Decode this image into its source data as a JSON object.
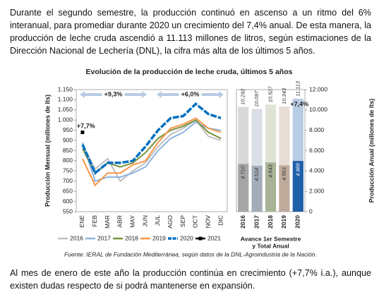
{
  "paragraphs": [
    "Durante el segundo semestre, la producción continuó en ascenso a un ritmo del 6% interanual, para promediar durante 2020 un crecimiento del 7,4% anual. De esta manera, la producción de leche cruda ascendió a 11.113 millones de litros, según estimaciones de la Dirección Nacional de Lechería (DNL), la cifra más alta de los últimos 5 años.",
    "Al mes de enero de este año la producción continúa en crecimiento (+7,7% i.a.), aunque existen dudas respecto de si podrá mantenerse en expansión."
  ],
  "figure_title": "Evolución de la producción de leche cruda, últimos 5 años",
  "source": "Fuente: IERAL de Fundación Mediterránea, según datos de la DNL-Agroindustria de la Nación.",
  "chart_data": [
    {
      "type": "line",
      "ylabel": "Producción Mensual (millones de lts)",
      "categories": [
        "ENE",
        "FEB",
        "MAR",
        "ABR",
        "MAY",
        "JUN",
        "JUL",
        "AGO",
        "SEP",
        "OCT",
        "NOV",
        "DIC"
      ],
      "series": [
        {
          "name": "2016",
          "color": "#bfbfbf",
          "values": [
            880,
            760,
            810,
            700,
            750,
            790,
            870,
            930,
            960,
            1000,
            920,
            900
          ]
        },
        {
          "name": "2017",
          "color": "#8db4e2",
          "values": [
            890,
            700,
            720,
            720,
            740,
            770,
            850,
            910,
            940,
            990,
            960,
            950
          ]
        },
        {
          "name": "2018",
          "color": "#77933c",
          "values": [
            860,
            740,
            790,
            770,
            790,
            840,
            910,
            950,
            970,
            1000,
            940,
            910
          ]
        },
        {
          "name": "2019",
          "color": "#f79646",
          "values": [
            810,
            680,
            740,
            740,
            780,
            800,
            890,
            960,
            980,
            1010,
            960,
            940
          ]
        },
        {
          "name": "2020",
          "color": "#0070c0",
          "dashed": true,
          "values": [
            880,
            740,
            790,
            790,
            800,
            870,
            950,
            1010,
            1020,
            1080,
            1030,
            1010
          ]
        },
        {
          "name": "2021",
          "color": "#000000",
          "marker": "square",
          "values": [
            940,
            null,
            null,
            null,
            null,
            null,
            null,
            null,
            null,
            null,
            null,
            null
          ]
        }
      ],
      "ylim": [
        550,
        1150
      ],
      "yticks": [
        550,
        600,
        650,
        700,
        750,
        800,
        850,
        900,
        950,
        {
          "value": 1000,
          "label": "1.000"
        },
        {
          "value": 1050,
          "label": "1.050"
        },
        {
          "value": 1100,
          "label": "1.100"
        },
        {
          "value": 1150,
          "label": "1.150"
        }
      ],
      "annotations": [
        {
          "text": "+9,3%"
        },
        {
          "text": "+6,0%"
        },
        {
          "text": "+7,7%"
        }
      ]
    },
    {
      "type": "bar",
      "overlay": true,
      "xlabel": [
        "Avance 1er Semestre",
        "y Total Anual"
      ],
      "ylabel": "Producción Anual (millones de lts)",
      "categories": [
        "2016",
        "2017",
        "2018",
        "2019",
        "2020"
      ],
      "series": [
        {
          "values": [
            10292,
            10097,
            10527,
            10343,
            11113
          ],
          "value_labels": [
            "10.292",
            "10.097",
            "10.527",
            "10.343",
            "11.113"
          ],
          "colors": [
            "#d9d9d9",
            "#dadfe6",
            "#dfe3d6",
            "#e8ddd5",
            "#b8cce4"
          ]
        },
        {
          "values": [
            4710,
            4514,
            4843,
            4563,
            4988
          ],
          "value_labels": [
            "4.710",
            "4.514",
            "4.843",
            "4.563",
            "4.988"
          ],
          "colors": [
            "#a6a6a6",
            "#a3adb9",
            "#a9b396",
            "#bfab9c",
            "#1f5fa8"
          ]
        }
      ],
      "ylim": [
        0,
        12000
      ],
      "yticks": [
        0,
        {
          "value": 2000,
          "label": "2.000"
        },
        {
          "value": 4000,
          "label": "4.000"
        },
        {
          "value": 6000,
          "label": "6.000"
        },
        {
          "value": 8000,
          "label": "8.000"
        },
        {
          "value": 10000,
          "label": "10.000"
        },
        {
          "value": 12000,
          "label": "12.000"
        }
      ],
      "annotations": [
        {
          "text": "+7,4%"
        }
      ]
    }
  ]
}
